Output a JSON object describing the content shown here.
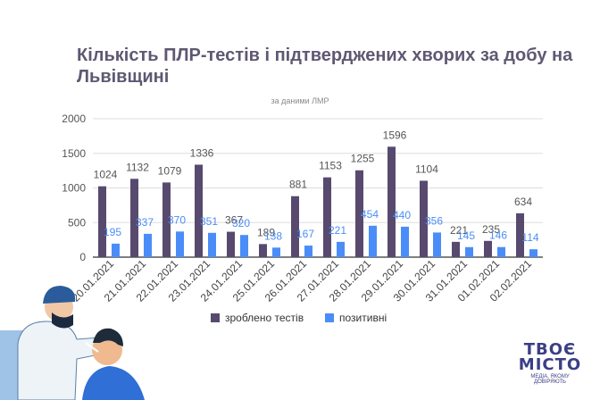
{
  "chart_data": {
    "type": "bar",
    "title": "Кількість ПЛР-тестів і підтверджених хворих за добу на Львівщині",
    "subtitle": "за даними ЛМР",
    "xlabel": "",
    "ylabel": "",
    "ylim": [
      0,
      2000
    ],
    "yticks": [
      "0",
      "500",
      "1000",
      "1500",
      "2000"
    ],
    "grid": true,
    "legend_position": "bottom",
    "categories": [
      "20.01.2021",
      "21.01.2021",
      "22.01.2021",
      "23.01.2021",
      "24.01.2021",
      "25.01.2021",
      "26.01.2021",
      "27.01.2021",
      "28.01.2021",
      "29.01.2021",
      "30.01.2021",
      "31.01.2021",
      "01.02.2021",
      "02.02.2021"
    ],
    "series": [
      {
        "name": "зроблено тестів",
        "color": "#574a6e",
        "values": [
          1024,
          1132,
          1079,
          1336,
          367,
          189,
          881,
          1153,
          1255,
          1596,
          1104,
          221,
          235,
          634
        ]
      },
      {
        "name": "позитивні",
        "color": "#4b8df8",
        "values": [
          195,
          337,
          370,
          351,
          320,
          138,
          167,
          221,
          454,
          440,
          356,
          145,
          146,
          114
        ]
      }
    ]
  },
  "logo": {
    "line1": "ТВОЄ",
    "line2": "МІСТО",
    "tagline": "МЕДІА, ЯКОМУ ДОВІРЯЮТЬ"
  }
}
